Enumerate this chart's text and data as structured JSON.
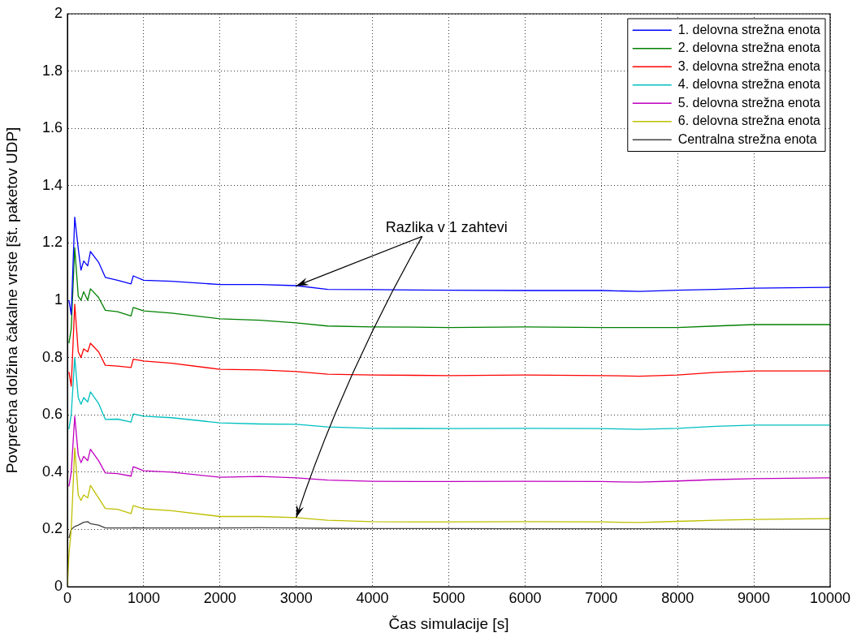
{
  "chart_data": {
    "type": "line",
    "xlabel": "Čas simulacije [s]",
    "ylabel": "Povprečna dolžina čakalne vrste [št. paketov UDP]",
    "x": [
      0,
      20,
      50,
      96,
      142,
      178,
      213,
      266,
      302,
      408,
      497,
      657,
      834,
      863,
      1000,
      1367,
      2000,
      2524,
      3000,
      3411,
      4000,
      5000,
      6000,
      7000,
      7500,
      8000,
      8500,
      9000,
      10000
    ],
    "series": [
      {
        "name": "1. delovna strežna enota",
        "color": "#0000ff",
        "values": [
          null,
          1.0,
          0.95,
          1.29,
          1.18,
          1.105,
          1.137,
          1.12,
          1.17,
          1.133,
          1.08,
          1.07,
          1.057,
          1.085,
          1.07,
          1.066,
          1.055,
          1.055,
          1.051,
          1.038,
          1.037,
          1.035,
          1.034,
          1.034,
          1.031,
          1.035,
          1.038,
          1.042,
          1.045
        ]
      },
      {
        "name": "2. delovna strežna enota",
        "color": "#008000",
        "values": [
          null,
          0.85,
          0.9,
          1.184,
          1.014,
          1.0,
          1.03,
          1.0,
          1.04,
          1.01,
          0.965,
          0.96,
          0.945,
          0.975,
          0.963,
          0.955,
          0.935,
          0.93,
          0.921,
          0.91,
          0.907,
          0.905,
          0.907,
          0.905,
          0.905,
          0.905,
          0.91,
          0.915,
          0.915
        ]
      },
      {
        "name": "3. delovna strežna enota",
        "color": "#ff0000",
        "values": [
          null,
          0.75,
          0.7,
          0.986,
          0.82,
          0.8,
          0.83,
          0.82,
          0.85,
          0.82,
          0.773,
          0.77,
          0.765,
          0.794,
          0.788,
          0.78,
          0.759,
          0.757,
          0.751,
          0.742,
          0.739,
          0.737,
          0.739,
          0.737,
          0.735,
          0.739,
          0.748,
          0.753,
          0.753
        ]
      },
      {
        "name": "4. delovna strežna enota",
        "color": "#00bfbf",
        "values": [
          null,
          0.55,
          0.6,
          0.8,
          0.66,
          0.637,
          0.66,
          0.645,
          0.68,
          0.64,
          0.584,
          0.585,
          0.575,
          0.603,
          0.595,
          0.59,
          0.572,
          0.568,
          0.567,
          0.558,
          0.553,
          0.552,
          0.553,
          0.552,
          0.549,
          0.553,
          0.56,
          0.564,
          0.564
        ]
      },
      {
        "name": "5. delovna strežna enota",
        "color": "#bf00bf",
        "values": [
          null,
          0.35,
          0.4,
          0.595,
          0.46,
          0.433,
          0.455,
          0.44,
          0.48,
          0.44,
          0.397,
          0.395,
          0.386,
          0.419,
          0.405,
          0.4,
          0.382,
          0.385,
          0.38,
          0.372,
          0.368,
          0.367,
          0.368,
          0.367,
          0.365,
          0.369,
          0.374,
          0.377,
          0.38
        ]
      },
      {
        "name": "6. delovna strežna enota",
        "color": "#bfbf00",
        "values": [
          0.0,
          0.113,
          0.2,
          0.485,
          0.32,
          0.301,
          0.32,
          0.31,
          0.354,
          0.31,
          0.273,
          0.27,
          0.255,
          0.283,
          0.272,
          0.265,
          0.245,
          0.245,
          0.241,
          0.232,
          0.227,
          0.226,
          0.227,
          0.226,
          0.224,
          0.228,
          0.232,
          0.235,
          0.238
        ]
      },
      {
        "name": "Centralna strežna enota",
        "color": "#404040",
        "values": [
          null,
          0.17,
          0.2,
          0.21,
          0.215,
          0.22,
          0.225,
          0.227,
          0.22,
          0.215,
          0.205,
          0.205,
          0.205,
          0.206,
          0.205,
          0.205,
          0.205,
          0.206,
          0.205,
          0.204,
          0.203,
          0.203,
          0.202,
          0.202,
          0.202,
          0.202,
          0.201,
          0.201,
          0.2
        ]
      }
    ],
    "xlim": [
      0,
      10000
    ],
    "xticks": [
      0,
      1000,
      2000,
      3000,
      4000,
      5000,
      6000,
      7000,
      8000,
      9000,
      10000
    ],
    "ylim": [
      0,
      2
    ],
    "yticks": [
      0,
      0.2,
      0.4,
      0.6,
      0.8,
      1,
      1.2,
      1.4,
      1.6,
      1.8,
      2
    ],
    "grid": true,
    "legend": "top right",
    "marker": "none",
    "line_style": "solid",
    "annotations": [
      {
        "text": "Razlika v 1 zahtevi",
        "x": 3000,
        "y": 1.05
      }
    ]
  }
}
